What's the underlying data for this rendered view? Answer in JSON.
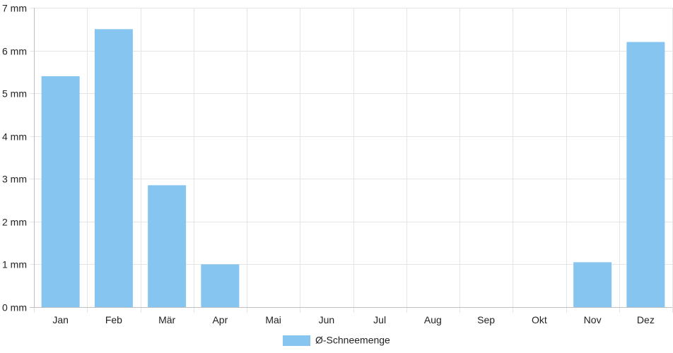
{
  "chart_data": {
    "type": "bar",
    "categories": [
      "Jan",
      "Feb",
      "Mär",
      "Apr",
      "Mai",
      "Jun",
      "Jul",
      "Aug",
      "Sep",
      "Okt",
      "Nov",
      "Dez"
    ],
    "series": [
      {
        "name": "Ø-Schneemenge",
        "values": [
          5.4,
          6.5,
          2.85,
          1.0,
          0,
          0,
          0,
          0,
          0,
          0,
          1.05,
          6.2
        ]
      }
    ],
    "y_ticks": [
      "0 mm",
      "1 mm",
      "2 mm",
      "3 mm",
      "4 mm",
      "5 mm",
      "6 mm",
      "7 mm"
    ],
    "ylim": [
      0,
      7
    ],
    "grid": true,
    "legend_position": "bottom",
    "colors": {
      "bar": "#87c5f1",
      "grid": "#e5e5e5",
      "axis": "#bfbfbf"
    }
  }
}
